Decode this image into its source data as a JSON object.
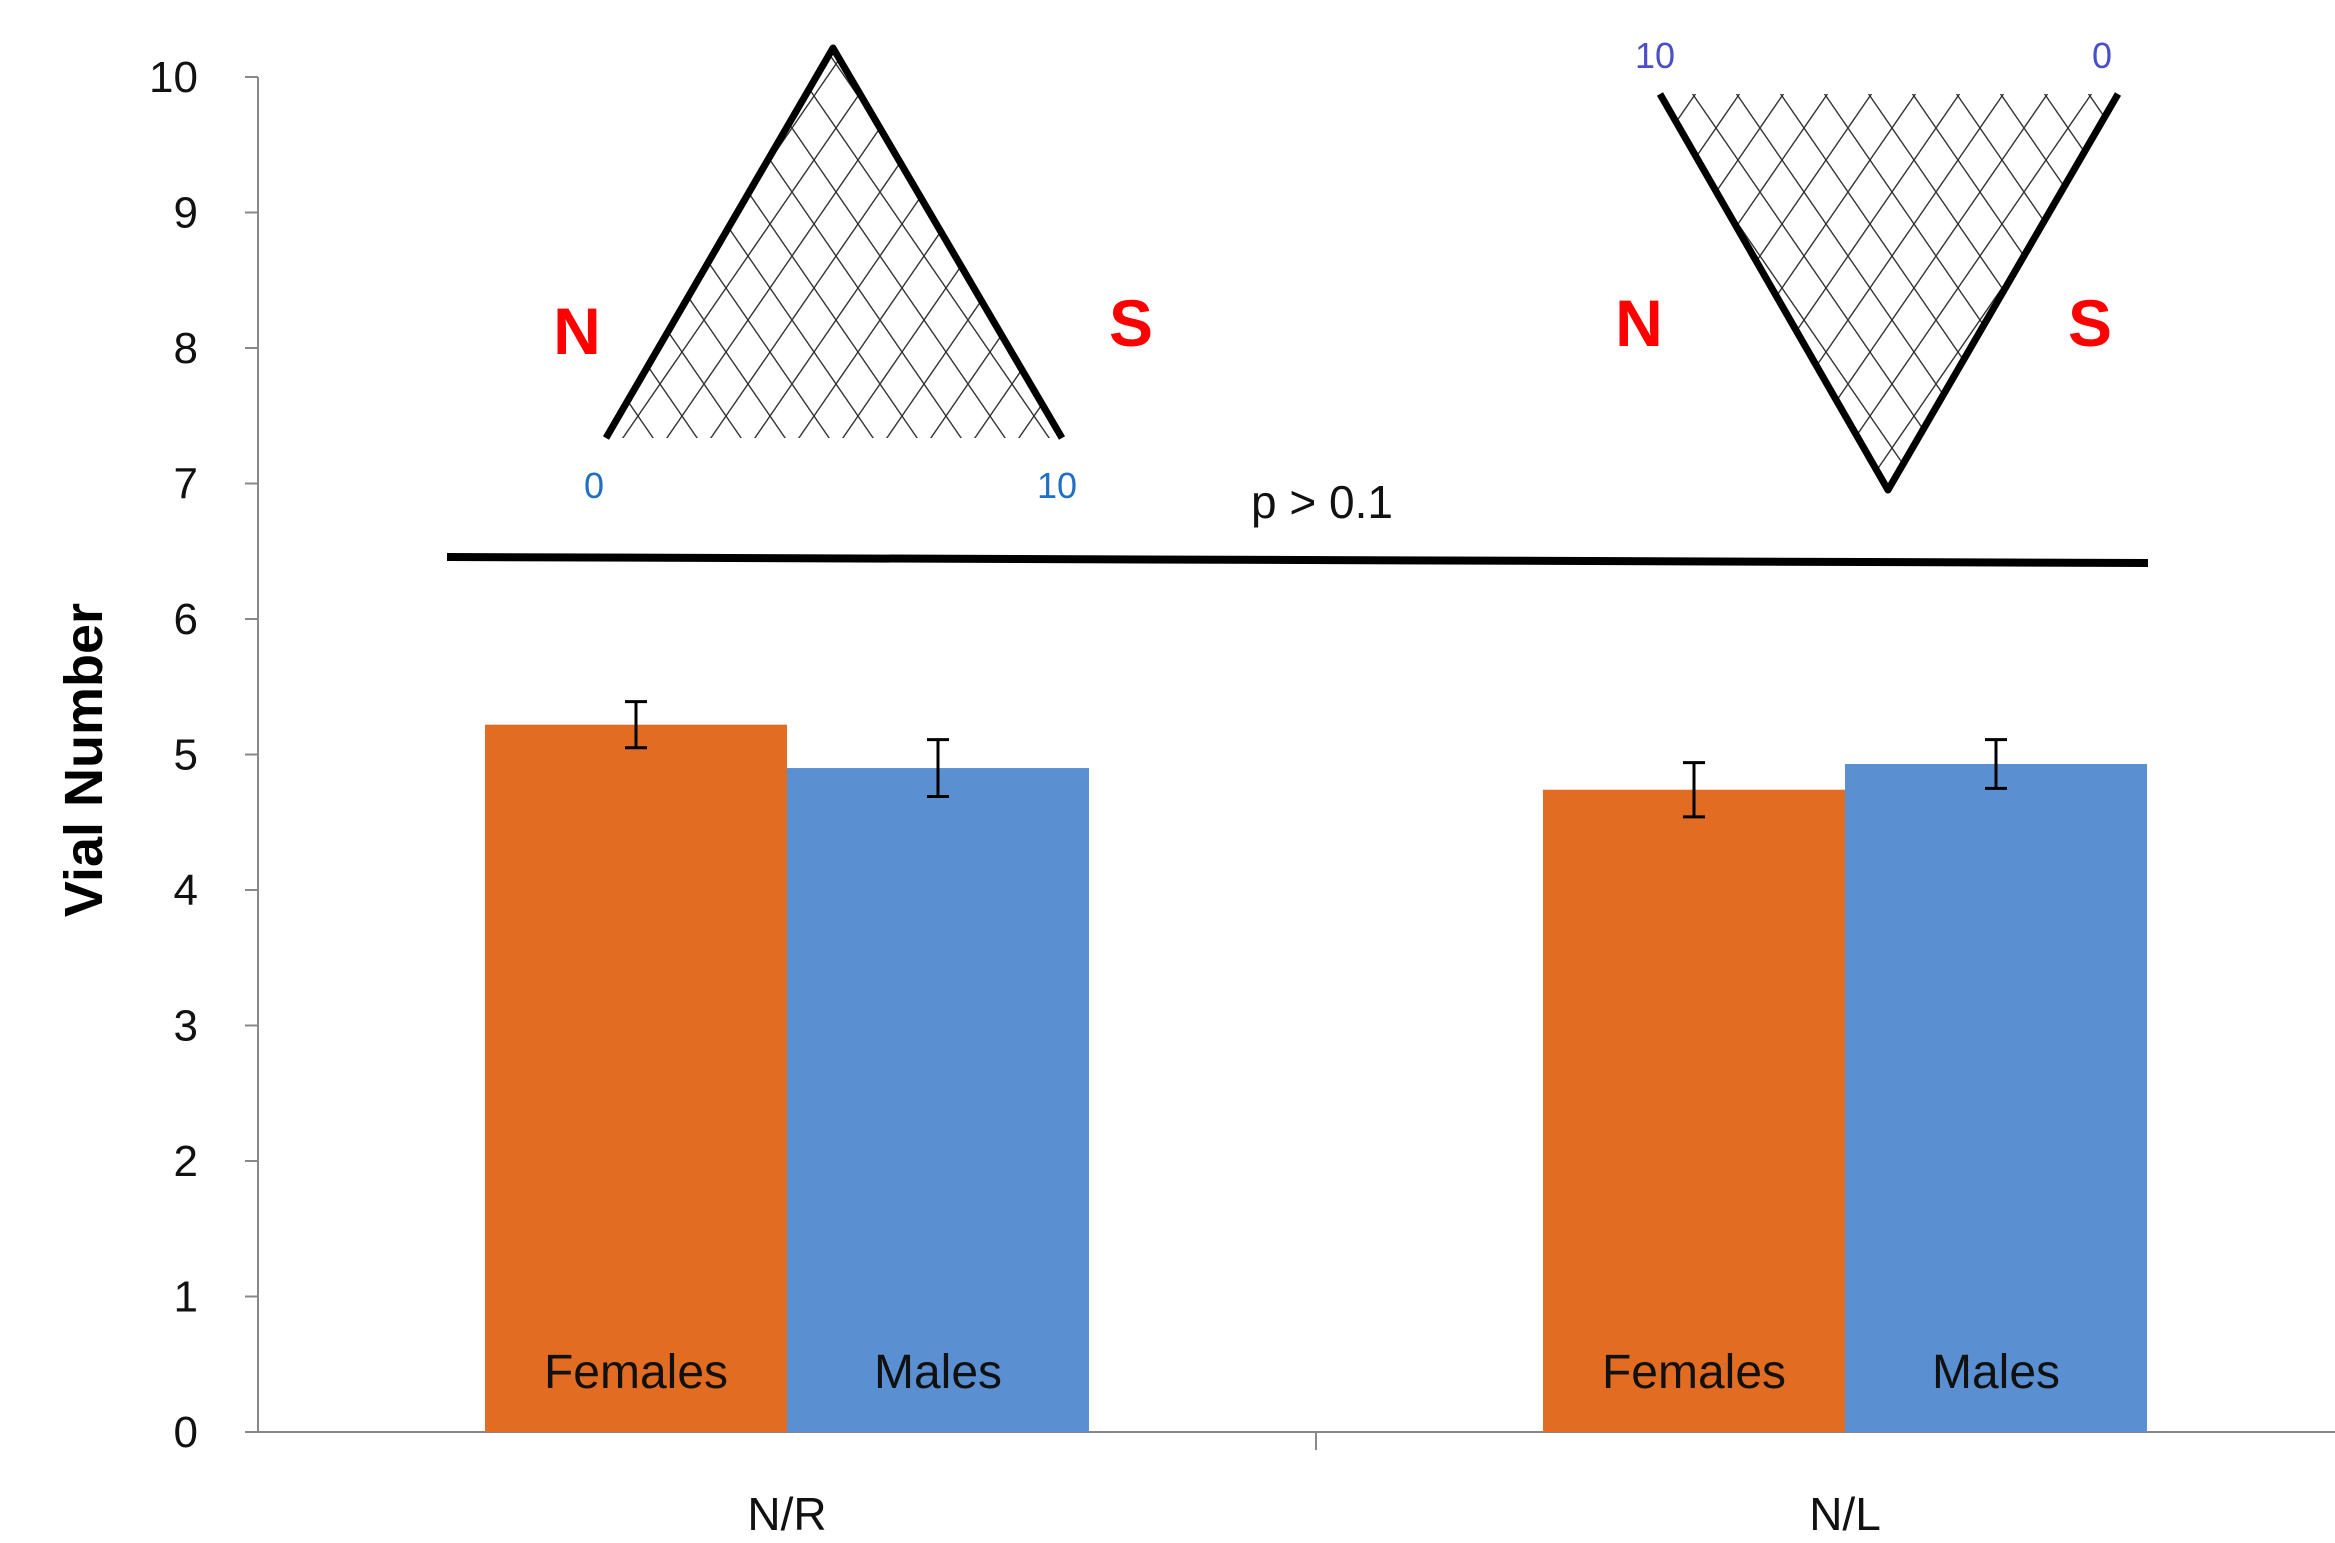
{
  "chart_data": {
    "type": "bar",
    "ylabel": "Vial Number",
    "ylim": [
      0,
      10
    ],
    "yticks": [
      "0",
      "1",
      "2",
      "3",
      "4",
      "5",
      "6",
      "7",
      "8",
      "9",
      "10"
    ],
    "categories": [
      "N/R",
      "N/L"
    ],
    "series": [
      {
        "name": "Females",
        "values": [
          5.22,
          4.74
        ],
        "errors": [
          0.17,
          0.2
        ],
        "color": "#E36C23"
      },
      {
        "name": "Males",
        "values": [
          4.9,
          4.93
        ],
        "errors": [
          0.21,
          0.18
        ],
        "color": "#5A8FD2"
      }
    ],
    "bar_labels": [
      [
        "Females",
        "Males"
      ],
      [
        "Females",
        "Males"
      ]
    ],
    "annotation": {
      "text": "p > 0.1"
    },
    "schematics": [
      {
        "shape": "triangle-up",
        "left_letter": "N",
        "right_letter": "S",
        "left_number": "0",
        "right_number": "10",
        "number_color": "#1F6FC4"
      },
      {
        "shape": "triangle-down",
        "left_letter": "N",
        "right_letter": "S",
        "left_number": "10",
        "right_number": "0",
        "number_color": "#4A4FC8"
      }
    ],
    "letter_color": "#FF0000",
    "grid": false
  }
}
